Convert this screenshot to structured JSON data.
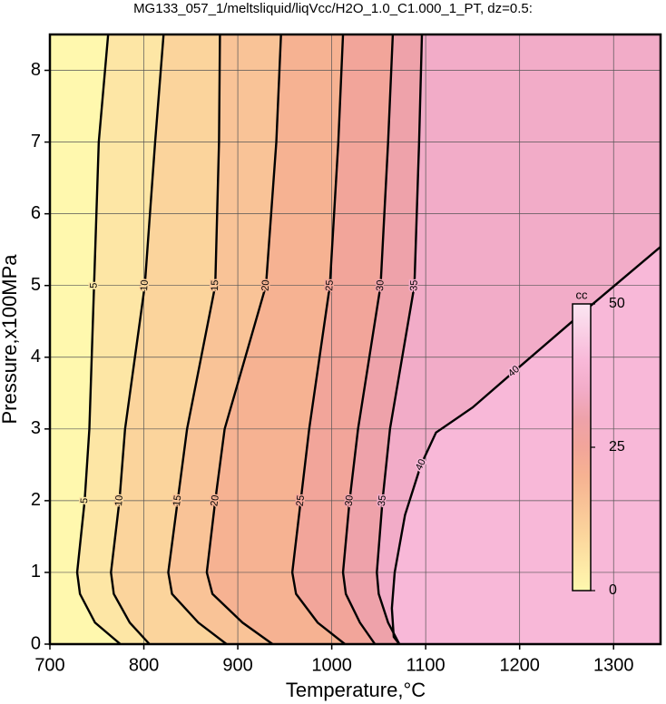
{
  "chart_data": {
    "type": "contour",
    "title": "MG133_057_1/meltsliquid/liqVcc/H2O_1.0_C1.000_1_PT, dz=0.5:",
    "xlabel": "Temperature,°C",
    "ylabel": "Pressure,x100MPa",
    "xlim": [
      700,
      1350
    ],
    "ylim": [
      0,
      8.5
    ],
    "xticks": [
      700,
      800,
      900,
      1000,
      1100,
      1200,
      1300
    ],
    "yticks": [
      0,
      1,
      2,
      3,
      4,
      5,
      6,
      7,
      8
    ],
    "grid": true,
    "colormap": [
      {
        "value": 0,
        "color": "#fff8ae"
      },
      {
        "value": 10,
        "color": "#fbd49c"
      },
      {
        "value": 20,
        "color": "#f6b292"
      },
      {
        "value": 25,
        "color": "#f2a59a"
      },
      {
        "value": 30,
        "color": "#eea2aa"
      },
      {
        "value": 35,
        "color": "#f2acc8"
      },
      {
        "value": 40,
        "color": "#f8b8d8"
      },
      {
        "value": 50,
        "color": "#fbe6f2"
      }
    ],
    "colorbar": {
      "label": "cc",
      "lim": [
        0,
        50
      ],
      "ticks": [
        0,
        25,
        50
      ]
    },
    "contours": [
      {
        "level": 5,
        "x": [
          775,
          748,
          732,
          729,
          737,
          742,
          747,
          752,
          762
        ],
        "y": [
          0,
          0.3,
          0.7,
          1,
          2,
          3,
          5,
          7,
          8.5
        ]
      },
      {
        "level": 10,
        "x": [
          806,
          785,
          768,
          765,
          774,
          780,
          801,
          812,
          821
        ],
        "y": [
          0,
          0.3,
          0.7,
          1,
          2,
          3,
          5,
          7,
          8.5
        ]
      },
      {
        "level": 15,
        "x": [
          888,
          858,
          830,
          826,
          836,
          846,
          876,
          880,
          881
        ],
        "y": [
          0,
          0.3,
          0.7,
          1,
          2,
          3,
          5,
          7,
          8.5
        ]
      },
      {
        "level": 20,
        "x": [
          937,
          905,
          873,
          867,
          876,
          886,
          930,
          941,
          946
        ],
        "y": [
          0,
          0.3,
          0.7,
          1,
          2,
          3,
          5,
          7,
          8.5
        ]
      },
      {
        "level": 25,
        "x": [
          1014,
          985,
          962,
          958,
          967,
          976,
          998,
          1007,
          1012
        ],
        "y": [
          0,
          0.3,
          0.7,
          1,
          2,
          3,
          5,
          7,
          8.5
        ]
      },
      {
        "level": 30,
        "x": [
          1046,
          1030,
          1015,
          1012,
          1019,
          1028,
          1052,
          1060,
          1065
        ],
        "y": [
          0,
          0.3,
          0.7,
          1,
          2,
          3,
          5,
          7,
          8.5
        ]
      },
      {
        "level": 35,
        "x": [
          1072,
          1060,
          1050,
          1048,
          1054,
          1062,
          1088,
          1093,
          1096
        ],
        "y": [
          0,
          0.3,
          0.7,
          1,
          2,
          3,
          5,
          7,
          8.5
        ]
      },
      {
        "level": 40,
        "x": [
          1072,
          1066,
          1064,
          1067,
          1078,
          1095,
          1111,
          1150,
          1194,
          1265,
          1350
        ],
        "y": [
          0,
          0.1,
          0.5,
          1,
          1.8,
          2.5,
          2.95,
          3.3,
          3.8,
          4.6,
          5.54
        ]
      }
    ]
  }
}
